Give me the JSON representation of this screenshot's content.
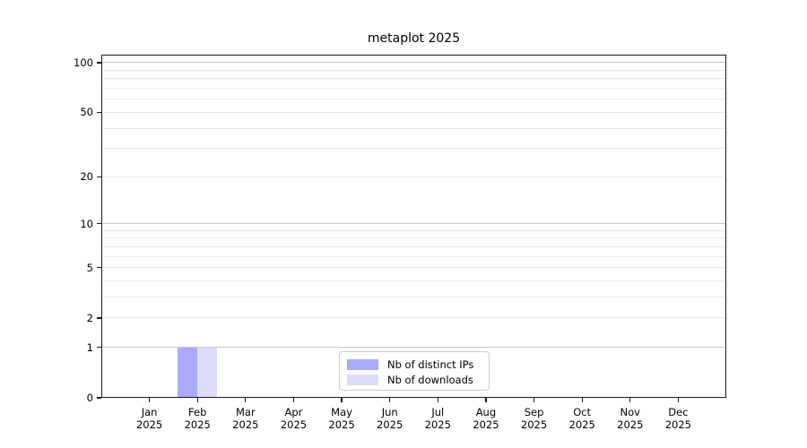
{
  "chart_data": {
    "type": "bar",
    "title": "metaplot 2025",
    "categories": [
      "Jan 2025",
      "Feb 2025",
      "Mar 2025",
      "Apr 2025",
      "May 2025",
      "Jun 2025",
      "Jul 2025",
      "Aug 2025",
      "Sep 2025",
      "Oct 2025",
      "Nov 2025",
      "Dec 2025"
    ],
    "month_labels": [
      "Jan",
      "Feb",
      "Mar",
      "Apr",
      "May",
      "Jun",
      "Jul",
      "Aug",
      "Sep",
      "Oct",
      "Nov",
      "Dec"
    ],
    "year_label": "2025",
    "series": [
      {
        "name": "Nb of distinct IPs",
        "color": "#aaaaf8",
        "values": [
          0,
          1,
          0,
          0,
          0,
          0,
          0,
          0,
          0,
          0,
          0,
          0
        ]
      },
      {
        "name": "Nb of downloads",
        "color": "#dcdcf9",
        "values": [
          0,
          1,
          0,
          0,
          0,
          0,
          0,
          0,
          0,
          0,
          0,
          0
        ]
      }
    ],
    "y_axis": {
      "scale": "log10(value+1)",
      "ticks": [
        0,
        1,
        2,
        5,
        10,
        20,
        50,
        100
      ],
      "minor_gridline_values": [
        3,
        4,
        6,
        7,
        8,
        9,
        30,
        40,
        60,
        70,
        80,
        90
      ],
      "major_gridline_values": [
        1,
        10,
        100
      ],
      "range": [
        0,
        112
      ]
    },
    "x_axis": {
      "label": "",
      "tick_count": 12
    },
    "grid": "horizontal",
    "legend_position": "inside-bottom-center",
    "colors": {
      "major_grid": "#c8c8c8",
      "minor_grid": "#eaeaea",
      "spine": "#1a1a1a",
      "text": "#000000",
      "background": "#ffffff"
    }
  }
}
